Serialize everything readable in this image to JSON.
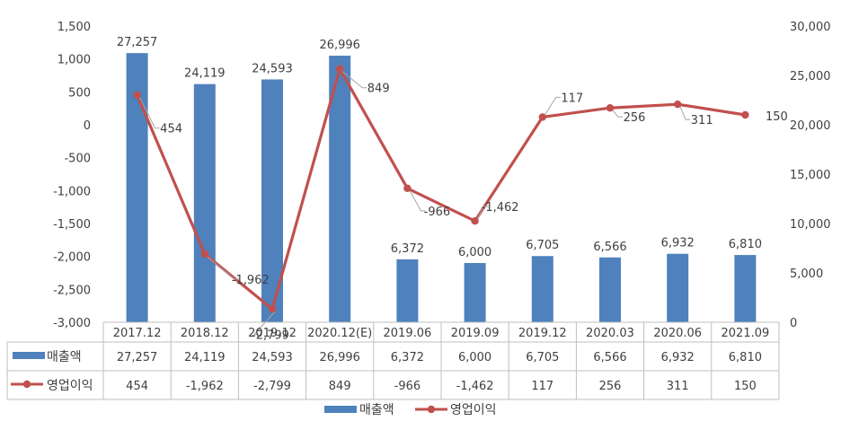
{
  "chart_data": {
    "type": "bar+line",
    "categories": [
      "2017.12",
      "2018.12",
      "2019.12",
      "2020.12(E)",
      "2019.06",
      "2019.09",
      "2019.12",
      "2020.03",
      "2020.06",
      "2021.09"
    ],
    "series": [
      {
        "name": "매출액",
        "type": "bar",
        "axis": "right",
        "color": "#4f81bd",
        "values": [
          27257,
          24119,
          24593,
          26996,
          6372,
          6000,
          6705,
          6566,
          6932,
          6810
        ],
        "labels": [
          "27,257",
          "24,119",
          "24,593",
          "26,996",
          "6,372",
          "6,000",
          "6,705",
          "6,566",
          "6,932",
          "6,810"
        ]
      },
      {
        "name": "영업이익",
        "type": "line",
        "axis": "left",
        "color": "#c0504d",
        "values": [
          454,
          -1962,
          -2799,
          849,
          -966,
          -1462,
          117,
          256,
          311,
          150
        ],
        "labels": [
          "454",
          "-1,962",
          "-2,799",
          "849",
          "-966",
          "-1,462",
          "117",
          "256",
          "311",
          "150"
        ]
      }
    ],
    "left_axis": {
      "min": -3000,
      "max": 1500,
      "step": 500,
      "tick_labels": [
        "-3,000",
        "-2,500",
        "-2,000",
        "-1,500",
        "-1,000",
        "-500",
        "0",
        "500",
        "1,000",
        "1,500"
      ]
    },
    "right_axis": {
      "min": 0,
      "max": 30000,
      "step": 5000,
      "tick_labels": [
        "0",
        "5,000",
        "10,000",
        "15,000",
        "20,000",
        "25,000",
        "30,000"
      ]
    },
    "data_table": true,
    "legend_position": "bottom",
    "gridlines": false
  }
}
